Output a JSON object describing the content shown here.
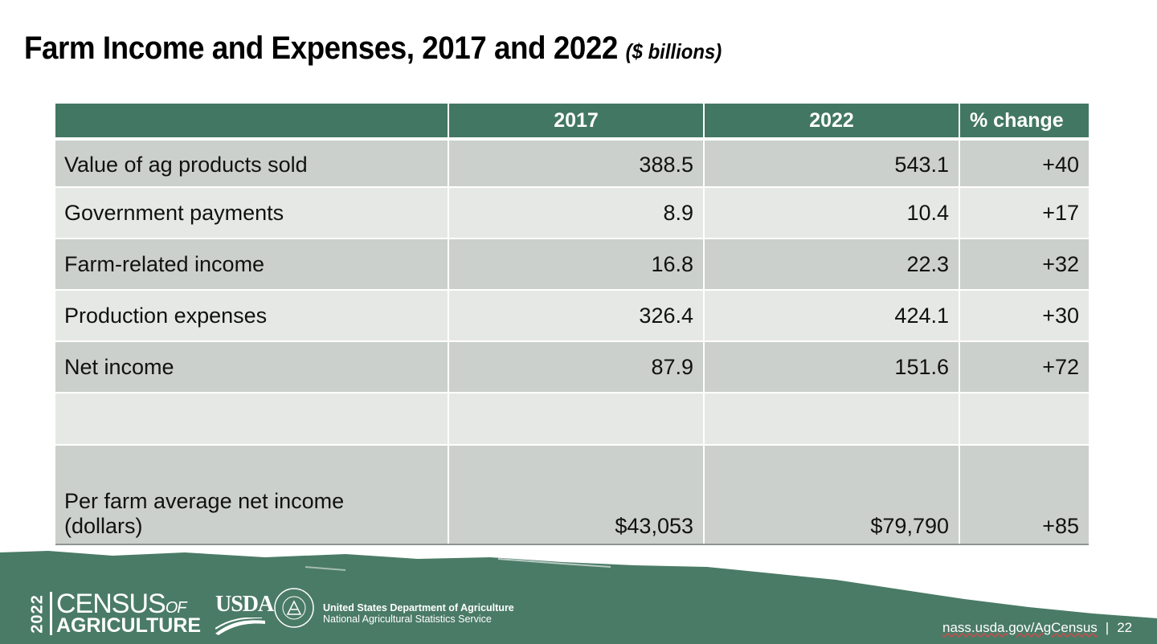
{
  "slide": {
    "title": "Farm Income and Expenses, 2017 and 2022",
    "subtitle": "($ billions)"
  },
  "table": {
    "headers": [
      "",
      "2017",
      "2022",
      "% change"
    ],
    "rows": [
      {
        "label": "Value of ag products sold",
        "v2017": "388.5",
        "v2022": "543.1",
        "change": "+40"
      },
      {
        "label": "Government payments",
        "v2017": "8.9",
        "v2022": "10.4",
        "change": "+17"
      },
      {
        "label": "Farm-related income",
        "v2017": "16.8",
        "v2022": "22.3",
        "change": "+32"
      },
      {
        "label": "Production expenses",
        "v2017": "326.4",
        "v2022": "424.1",
        "change": "+30"
      },
      {
        "label": "Net income",
        "v2017": "87.9",
        "v2022": "151.6",
        "change": "+72"
      }
    ],
    "per_farm": {
      "label_line1": "Per farm average net income",
      "label_line2": "(dollars)",
      "v2017": "$43,053",
      "v2022": "$79,790",
      "change": "+85"
    }
  },
  "footer": {
    "census_year": "2022",
    "census_word1": "CENSUS",
    "census_of": "OF",
    "census_word2": "AGRICULTURE",
    "usda": "USDA",
    "dept_line1": "United States Department of Agriculture",
    "dept_line2": "National Agricultural Statistics Service",
    "url": "nass.usda.gov/AgCensus",
    "separator": "|",
    "page_number": "22"
  },
  "colors": {
    "header_green": "#427763",
    "row_dark": "#cbd0cc",
    "row_light": "#e6e8e6",
    "footer_green": "#4a7b66"
  },
  "icons": [
    "usda-logo-icon",
    "ag-census-seal-icon"
  ]
}
